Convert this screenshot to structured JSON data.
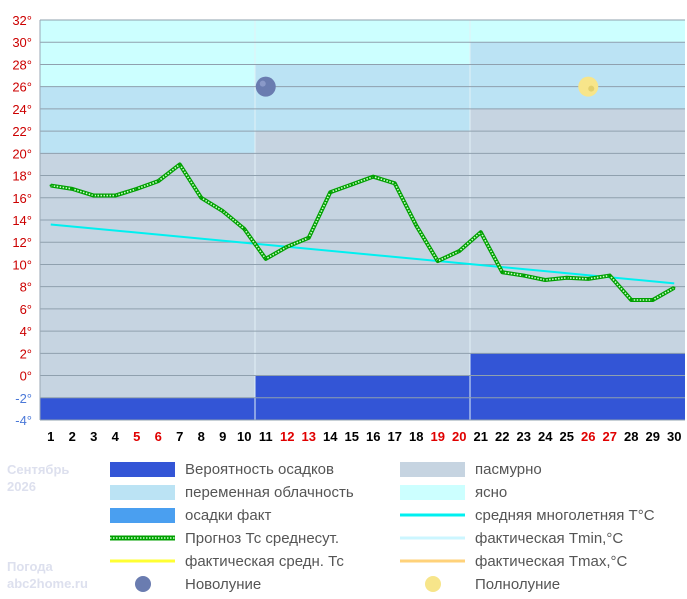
{
  "chart_data": {
    "type": "line",
    "ylim": [
      -4,
      32
    ],
    "y_ticks": [
      "-4°",
      "-2°",
      "0°",
      "2°",
      "4°",
      "6°",
      "8°",
      "10°",
      "12°",
      "14°",
      "16°",
      "18°",
      "20°",
      "22°",
      "24°",
      "26°",
      "28°",
      "30°",
      "32°"
    ],
    "x_ticks": [
      "1",
      "2",
      "3",
      "4",
      "5",
      "6",
      "7",
      "8",
      "9",
      "10",
      "11",
      "12",
      "13",
      "14",
      "15",
      "16",
      "17",
      "18",
      "19",
      "20",
      "21",
      "22",
      "23",
      "24",
      "25",
      "26",
      "27",
      "28",
      "29",
      "30"
    ],
    "weekend_days": [
      5,
      6,
      12,
      13,
      19,
      20,
      26,
      27
    ],
    "decades": [
      {
        "days": [
          1,
          10
        ],
        "clear_from": 26,
        "partly_from": 20,
        "precip_top": -2
      },
      {
        "days": [
          11,
          20
        ],
        "clear_from": 28,
        "partly_from": 22,
        "precip_top": 0
      },
      {
        "days": [
          21,
          30
        ],
        "clear_from": 30,
        "partly_from": 24,
        "precip_top": 2
      }
    ],
    "series": [
      {
        "name": "Прогноз Тс среднесут.",
        "color": "#00a000",
        "x": [
          1,
          2,
          3,
          4,
          5,
          6,
          7,
          8,
          9,
          10,
          11,
          12,
          13,
          14,
          15,
          16,
          17,
          18,
          19,
          20,
          21,
          22,
          23,
          24,
          25,
          26,
          27,
          28,
          29,
          30
        ],
        "values": [
          17.1,
          16.8,
          16.2,
          16.2,
          16.8,
          17.5,
          19.0,
          16.0,
          14.8,
          13.2,
          10.5,
          11.6,
          12.4,
          16.5,
          17.2,
          17.9,
          17.3,
          13.5,
          10.3,
          11.2,
          12.9,
          9.3,
          9.0,
          8.6,
          8.8,
          8.7,
          9.0,
          6.8,
          6.8,
          7.9
        ]
      },
      {
        "name": "средняя многолетняя T°C",
        "color": "#00f0f0",
        "x": [
          1,
          30
        ],
        "values": [
          13.6,
          8.3
        ]
      }
    ],
    "new_moon_day": 11,
    "full_moon_day": 26,
    "moon_y": 26
  },
  "legend": [
    {
      "label": "Вероятность осадков",
      "kind": "box",
      "color": "#3355d6"
    },
    {
      "label": "пасмурно",
      "kind": "box",
      "color": "#c6d4e1"
    },
    {
      "label": "переменная облачность",
      "kind": "box",
      "color": "#bbe3f4"
    },
    {
      "label": "ясно",
      "kind": "box",
      "color": "#ccffff"
    },
    {
      "label": "осадки факт",
      "kind": "box",
      "color": "#4a9ff0"
    },
    {
      "label": "средняя многолетняя T°C",
      "kind": "line",
      "color": "#00f0f0"
    },
    {
      "label": "Прогноз Тс среднесут.",
      "kind": "dotted",
      "color": "#00a000"
    },
    {
      "label": "фактическая Tmin,°C",
      "kind": "line",
      "color": "#ccf6ff"
    },
    {
      "label": "фактическая средн. Тс",
      "kind": "line",
      "color": "#ffff33"
    },
    {
      "label": "фактическая Tmax,°C",
      "kind": "line",
      "color": "#ffd27a"
    },
    {
      "label": "Новолуние",
      "kind": "new-moon",
      "color": "#6a7cb0"
    },
    {
      "label": "Полнолуние",
      "kind": "full-moon",
      "color": "#f7e58a"
    }
  ],
  "side": {
    "month": "Сентябрь",
    "year": "2026",
    "caption": "Погода",
    "site": "abc2home.ru"
  }
}
